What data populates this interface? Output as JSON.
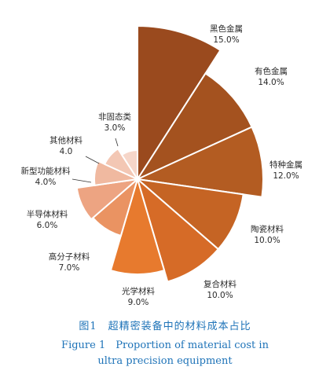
{
  "chart_data": {
    "type": "pie",
    "variant": "rose",
    "title_cn": "图1　超精密装备中的材料成本占比",
    "title_en_line1": "Figure 1　Proportion of material cost in",
    "title_en_line2": "ultra precision equipment",
    "slices": [
      {
        "label": "黑色金属",
        "value_text": "15.0%",
        "value": 15.0,
        "color": "#9a4a1e"
      },
      {
        "label": "有色金属",
        "value_text": "14.0%",
        "value": 14.0,
        "color": "#a4521f"
      },
      {
        "label": "特种金属",
        "value_text": "12.0%",
        "value": 12.0,
        "color": "#b35c22"
      },
      {
        "label": "陶瓷材料",
        "value_text": "10.0%",
        "value": 10.0,
        "color": "#c56424"
      },
      {
        "label": "复合材料",
        "value_text": "10.0%",
        "value": 10.0,
        "color": "#d66b27"
      },
      {
        "label": "光学材料",
        "value_text": "9.0%",
        "value": 9.0,
        "color": "#e77a2e"
      },
      {
        "label": "高分子材料",
        "value_text": "7.0%",
        "value": 7.0,
        "color": "#ea9362"
      },
      {
        "label": "半导体材料",
        "value_text": "6.0%",
        "value": 6.0,
        "color": "#eda482"
      },
      {
        "label": "新型功能材料",
        "value_text": "4.0%",
        "value": 4.0,
        "color": "#f0b9a0"
      },
      {
        "label": "其他材料",
        "value_text": "4.0",
        "value": 4.0,
        "color": "#f3c7b4"
      },
      {
        "label": "非固态类",
        "value_text": "3.0%",
        "value": 3.0,
        "color": "#f6d6c9"
      }
    ]
  }
}
